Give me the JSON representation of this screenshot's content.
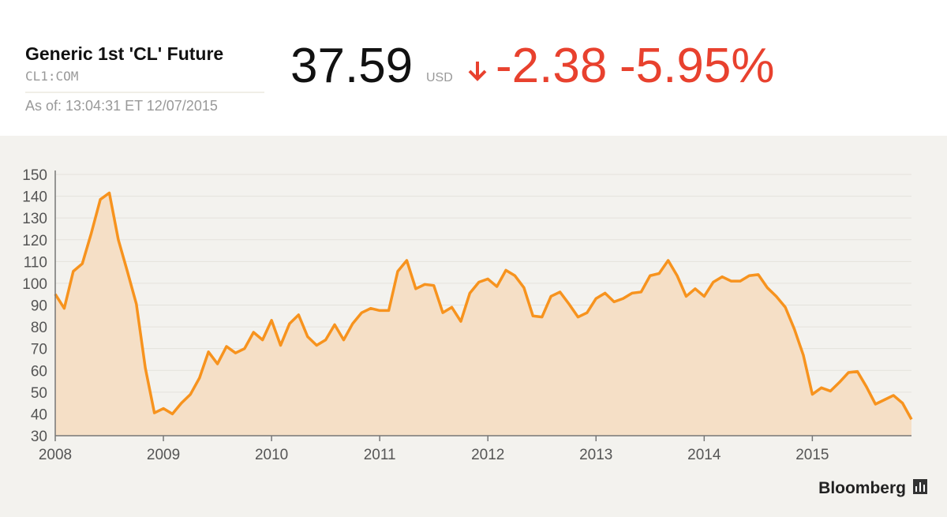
{
  "header": {
    "title": "Generic 1st 'CL' Future",
    "ticker": "CL1:COM",
    "as_of": "As of: 13:04:31 ET 12/07/2015",
    "price": "37.59",
    "currency": "USD",
    "change": "-2.38",
    "change_pct": "-5.95%"
  },
  "chart_data": {
    "type": "line",
    "categories": [
      "2008",
      null,
      null,
      null,
      null,
      null,
      null,
      null,
      null,
      null,
      null,
      null,
      "2009",
      null,
      null,
      null,
      null,
      null,
      null,
      null,
      null,
      null,
      null,
      null,
      "2010",
      null,
      null,
      null,
      null,
      null,
      null,
      null,
      null,
      null,
      null,
      null,
      "2011",
      null,
      null,
      null,
      null,
      null,
      null,
      null,
      null,
      null,
      null,
      null,
      "2012",
      null,
      null,
      null,
      null,
      null,
      null,
      null,
      null,
      null,
      null,
      null,
      "2013",
      null,
      null,
      null,
      null,
      null,
      null,
      null,
      null,
      null,
      null,
      null,
      "2014",
      null,
      null,
      null,
      null,
      null,
      null,
      null,
      null,
      null,
      null,
      null,
      "2015",
      null,
      null,
      null,
      null,
      null,
      null,
      null,
      null,
      null,
      null,
      null
    ],
    "values": [
      95,
      88.5,
      105.5,
      109,
      123,
      138.5,
      141.5,
      120,
      105.5,
      90.5,
      61,
      40.5,
      42.5,
      40,
      45,
      49,
      56.5,
      68.5,
      63,
      71,
      68,
      70,
      77.5,
      74,
      83,
      71.5,
      81.5,
      85.5,
      75.5,
      71.5,
      74,
      81,
      74,
      81.5,
      86.5,
      88.5,
      87.5,
      87.5,
      105.5,
      110.5,
      97.5,
      99.5,
      99,
      86.5,
      89,
      82.5,
      95.5,
      100.5,
      102,
      98.5,
      106,
      103.5,
      98,
      85,
      84.5,
      94,
      96,
      90.5,
      84.5,
      86.5,
      93,
      95.5,
      91.5,
      93,
      95.5,
      96,
      103.5,
      104.5,
      110.5,
      103.5,
      94,
      97.5,
      94,
      100.5,
      103,
      101,
      101,
      103.5,
      104,
      98,
      94,
      89,
      79,
      67,
      49,
      52,
      50.5,
      54.5,
      59,
      59.5,
      52.5,
      44.5,
      46.5,
      48.5,
      45,
      37.5
    ],
    "color": "#f7931e",
    "area_color": "#f5dfc6",
    "ylim": [
      30,
      150
    ],
    "yticks": [
      30,
      40,
      50,
      60,
      70,
      80,
      90,
      100,
      110,
      120,
      130,
      140,
      150
    ],
    "grid": true
  },
  "brand": "Bloomberg"
}
